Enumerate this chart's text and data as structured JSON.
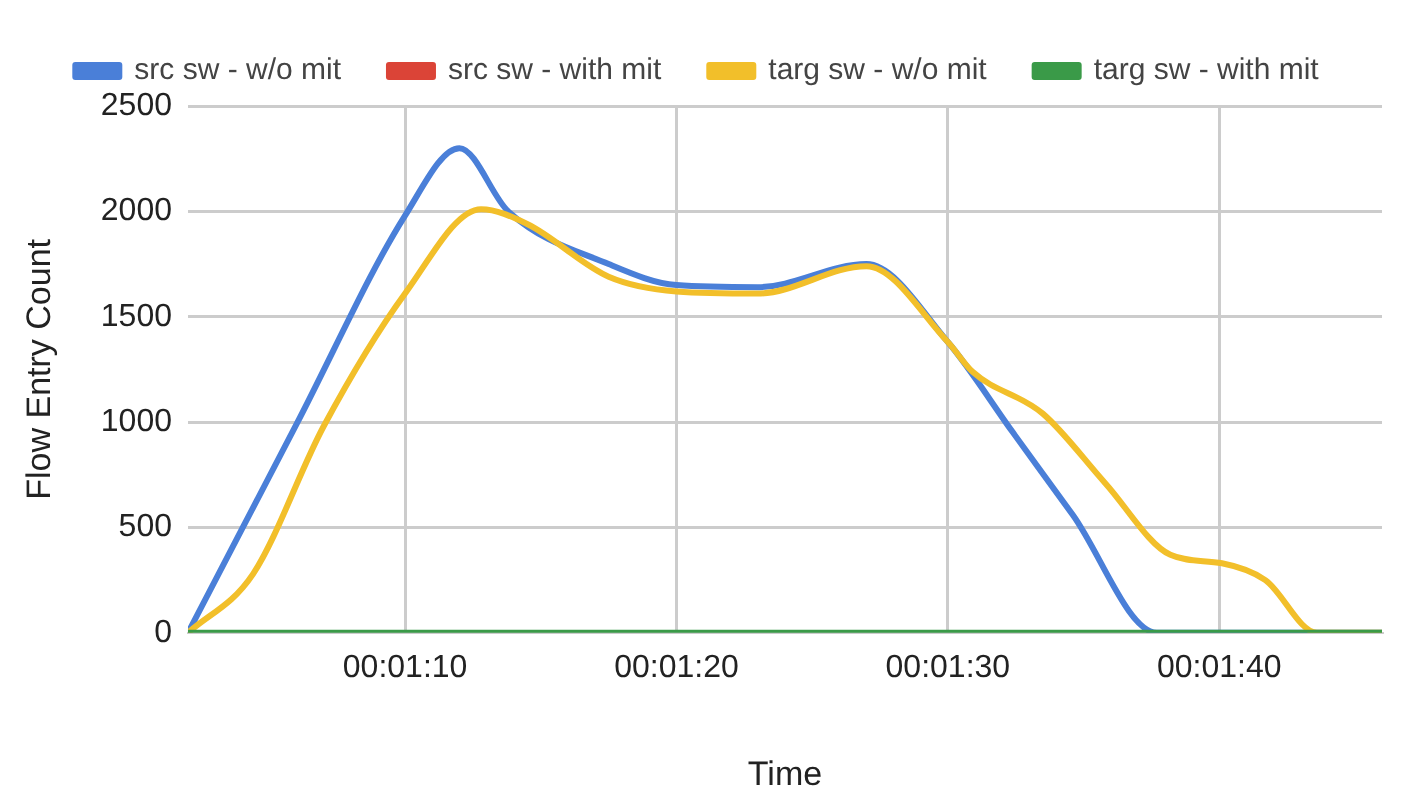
{
  "chart_data": {
    "type": "line",
    "xlabel": "Time",
    "ylabel": "Flow Entry Count",
    "xlim": [
      0.017222,
      0.029444
    ],
    "xticks": [
      {
        "value": 0.0194444,
        "label": "00:01:10"
      },
      {
        "value": 0.0222222,
        "label": "00:01:20"
      },
      {
        "value": 0.025,
        "label": "00:01:30"
      },
      {
        "value": 0.0277778,
        "label": "00:01:40"
      }
    ],
    "ylim": [
      0,
      2500
    ],
    "yticks": [
      0,
      500,
      1000,
      1500,
      2000,
      2500
    ],
    "grid": true,
    "legend": "top",
    "marker": "none",
    "line_style": "solid",
    "series": [
      {
        "name": "src sw - w/o mit",
        "color": "#4a7fd8",
        "x": [
          0.017222,
          0.018333,
          0.019444,
          0.02,
          0.0205,
          0.021528,
          0.022222,
          0.023056,
          0.024167,
          0.025,
          0.025667,
          0.026278,
          0.027139,
          0.029444
        ],
        "values": [
          0,
          990,
          1980,
          2300,
          2000,
          1750,
          1650,
          1640,
          1750,
          1380,
          950,
          560,
          0,
          0
        ]
      },
      {
        "name": "src sw - with mit",
        "color": "#db4437"
      },
      {
        "name": "targ sw - w/o mit",
        "color": "#f2bf2a",
        "x": [
          0.017222,
          0.017889,
          0.018611,
          0.019444,
          0.020222,
          0.020694,
          0.021528,
          0.022222,
          0.023056,
          0.024167,
          0.025,
          0.02525,
          0.025972,
          0.026611,
          0.027278,
          0.027806,
          0.02825,
          0.028778,
          0.029444
        ],
        "values": [
          0,
          280,
          980,
          1610,
          2010,
          1940,
          1690,
          1620,
          1610,
          1740,
          1380,
          1240,
          1040,
          710,
          370,
          330,
          250,
          0,
          0
        ]
      },
      {
        "name": "targ sw - with mit",
        "color": "#3a9a48",
        "x": [
          0.017222,
          0.029444
        ],
        "values": [
          0,
          0
        ]
      }
    ]
  }
}
